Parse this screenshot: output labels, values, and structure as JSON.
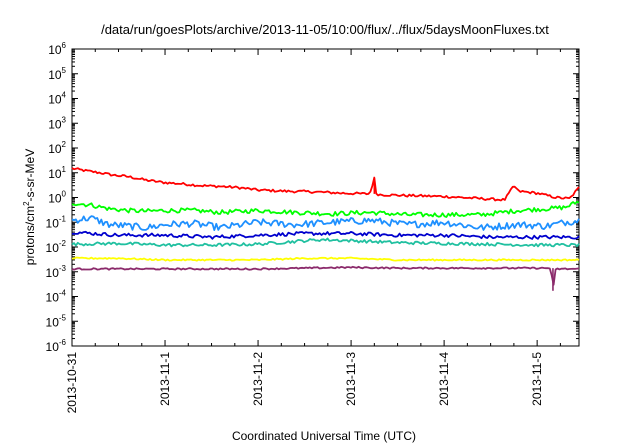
{
  "chart_data": {
    "type": "line",
    "title": "/data/run/goesPlots/archive/2013-11-05/10:00/flux/../flux/5daysMoonFluxes.txt",
    "xlabel": "Coordinated Universal Time (UTC)",
    "ylabel_base": "protons/cm",
    "ylabel_sup": "2",
    "ylabel_rest": "-s-sr-MeV",
    "yscale": "log",
    "ylim_exp": [
      -6,
      6
    ],
    "y_ticks": [
      {
        "base": "10",
        "exp": "6"
      },
      {
        "base": "10",
        "exp": "5"
      },
      {
        "base": "10",
        "exp": "4"
      },
      {
        "base": "10",
        "exp": "3"
      },
      {
        "base": "10",
        "exp": "2"
      },
      {
        "base": "10",
        "exp": "1"
      },
      {
        "base": "10",
        "exp": "0"
      },
      {
        "base": "10",
        "exp": "-1"
      },
      {
        "base": "10",
        "exp": "-2"
      },
      {
        "base": "10",
        "exp": "-3"
      },
      {
        "base": "10",
        "exp": "-4"
      },
      {
        "base": "10",
        "exp": "-5"
      },
      {
        "base": "10",
        "exp": "-6"
      }
    ],
    "x_ticks": [
      "2013-10-31",
      "2013-11-1",
      "2013-11-2",
      "2013-11-3",
      "2013-11-4",
      "2013-11-5"
    ],
    "x_range_days": [
      0,
      5.45
    ],
    "grid": false,
    "legend": "none",
    "series": [
      {
        "color": "#ff0000",
        "x_days": [
          0,
          0.15,
          0.3,
          0.45,
          0.6,
          0.8,
          1.0,
          1.2,
          1.4,
          1.6,
          1.8,
          2.0,
          2.3,
          2.6,
          2.9,
          3.2,
          3.25,
          3.27,
          3.3,
          3.6,
          4.0,
          4.4,
          4.65,
          4.75,
          4.8,
          5.0,
          5.2,
          5.35,
          5.45
        ],
        "y": [
          15,
          12,
          10,
          8,
          7,
          5,
          4,
          3.5,
          3,
          2.8,
          2.5,
          2,
          1.8,
          1.7,
          1.5,
          1.4,
          6,
          1.5,
          1.3,
          1.2,
          1.1,
          0.9,
          0.8,
          3,
          1.8,
          1.5,
          1.0,
          0.9,
          2.5
        ]
      },
      {
        "color": "#00ff00",
        "x_days": [
          0,
          0.2,
          0.4,
          0.6,
          0.8,
          1.0,
          1.3,
          1.6,
          2.0,
          2.4,
          2.8,
          3.2,
          3.6,
          4.0,
          4.4,
          4.8,
          5.1,
          5.3,
          5.45
        ],
        "y": [
          0.6,
          0.5,
          0.35,
          0.3,
          0.28,
          0.3,
          0.3,
          0.25,
          0.3,
          0.25,
          0.22,
          0.25,
          0.2,
          0.2,
          0.2,
          0.3,
          0.35,
          0.4,
          0.7
        ]
      },
      {
        "color": "#1e90ff",
        "x_days": [
          0,
          0.2,
          0.4,
          0.6,
          0.8,
          1.0,
          1.3,
          1.6,
          2.0,
          2.4,
          2.8,
          3.2,
          3.6,
          4.0,
          4.4,
          4.8,
          5.1,
          5.3,
          5.45
        ],
        "y": [
          0.12,
          0.15,
          0.08,
          0.07,
          0.06,
          0.08,
          0.09,
          0.06,
          0.1,
          0.08,
          0.1,
          0.12,
          0.08,
          0.1,
          0.06,
          0.08,
          0.07,
          0.1,
          0.12
        ]
      },
      {
        "color": "#0000cd",
        "x_days": [
          0,
          0.5,
          1.0,
          1.5,
          2.0,
          2.5,
          3.0,
          3.5,
          4.0,
          4.5,
          5.0,
          5.45
        ],
        "y": [
          0.04,
          0.03,
          0.03,
          0.025,
          0.03,
          0.035,
          0.035,
          0.03,
          0.03,
          0.025,
          0.025,
          0.025
        ]
      },
      {
        "color": "#20c0a0",
        "x_days": [
          0,
          0.5,
          1.0,
          1.5,
          2.0,
          2.5,
          2.7,
          3.0,
          3.5,
          4.0,
          4.5,
          5.0,
          5.45
        ],
        "y": [
          0.013,
          0.014,
          0.012,
          0.012,
          0.013,
          0.018,
          0.02,
          0.018,
          0.015,
          0.014,
          0.013,
          0.012,
          0.012
        ]
      },
      {
        "color": "#ffff00",
        "x_days": [
          0,
          0.5,
          1.0,
          1.5,
          2.0,
          2.5,
          3.0,
          3.5,
          4.0,
          4.5,
          5.0,
          5.45
        ],
        "y": [
          0.0035,
          0.0035,
          0.003,
          0.003,
          0.003,
          0.0035,
          0.0035,
          0.003,
          0.003,
          0.003,
          0.003,
          0.003
        ]
      },
      {
        "color": "#8b2a6b",
        "x_days": [
          0,
          0.5,
          1.0,
          1.5,
          2.0,
          2.5,
          3.0,
          3.5,
          4.0,
          4.5,
          5.0,
          5.15,
          5.17,
          5.2,
          5.45
        ],
        "y": [
          0.0013,
          0.0013,
          0.0013,
          0.0013,
          0.0013,
          0.0014,
          0.0015,
          0.0014,
          0.0014,
          0.0014,
          0.0014,
          0.0014,
          0.00017,
          0.0013,
          0.0013
        ]
      }
    ]
  }
}
